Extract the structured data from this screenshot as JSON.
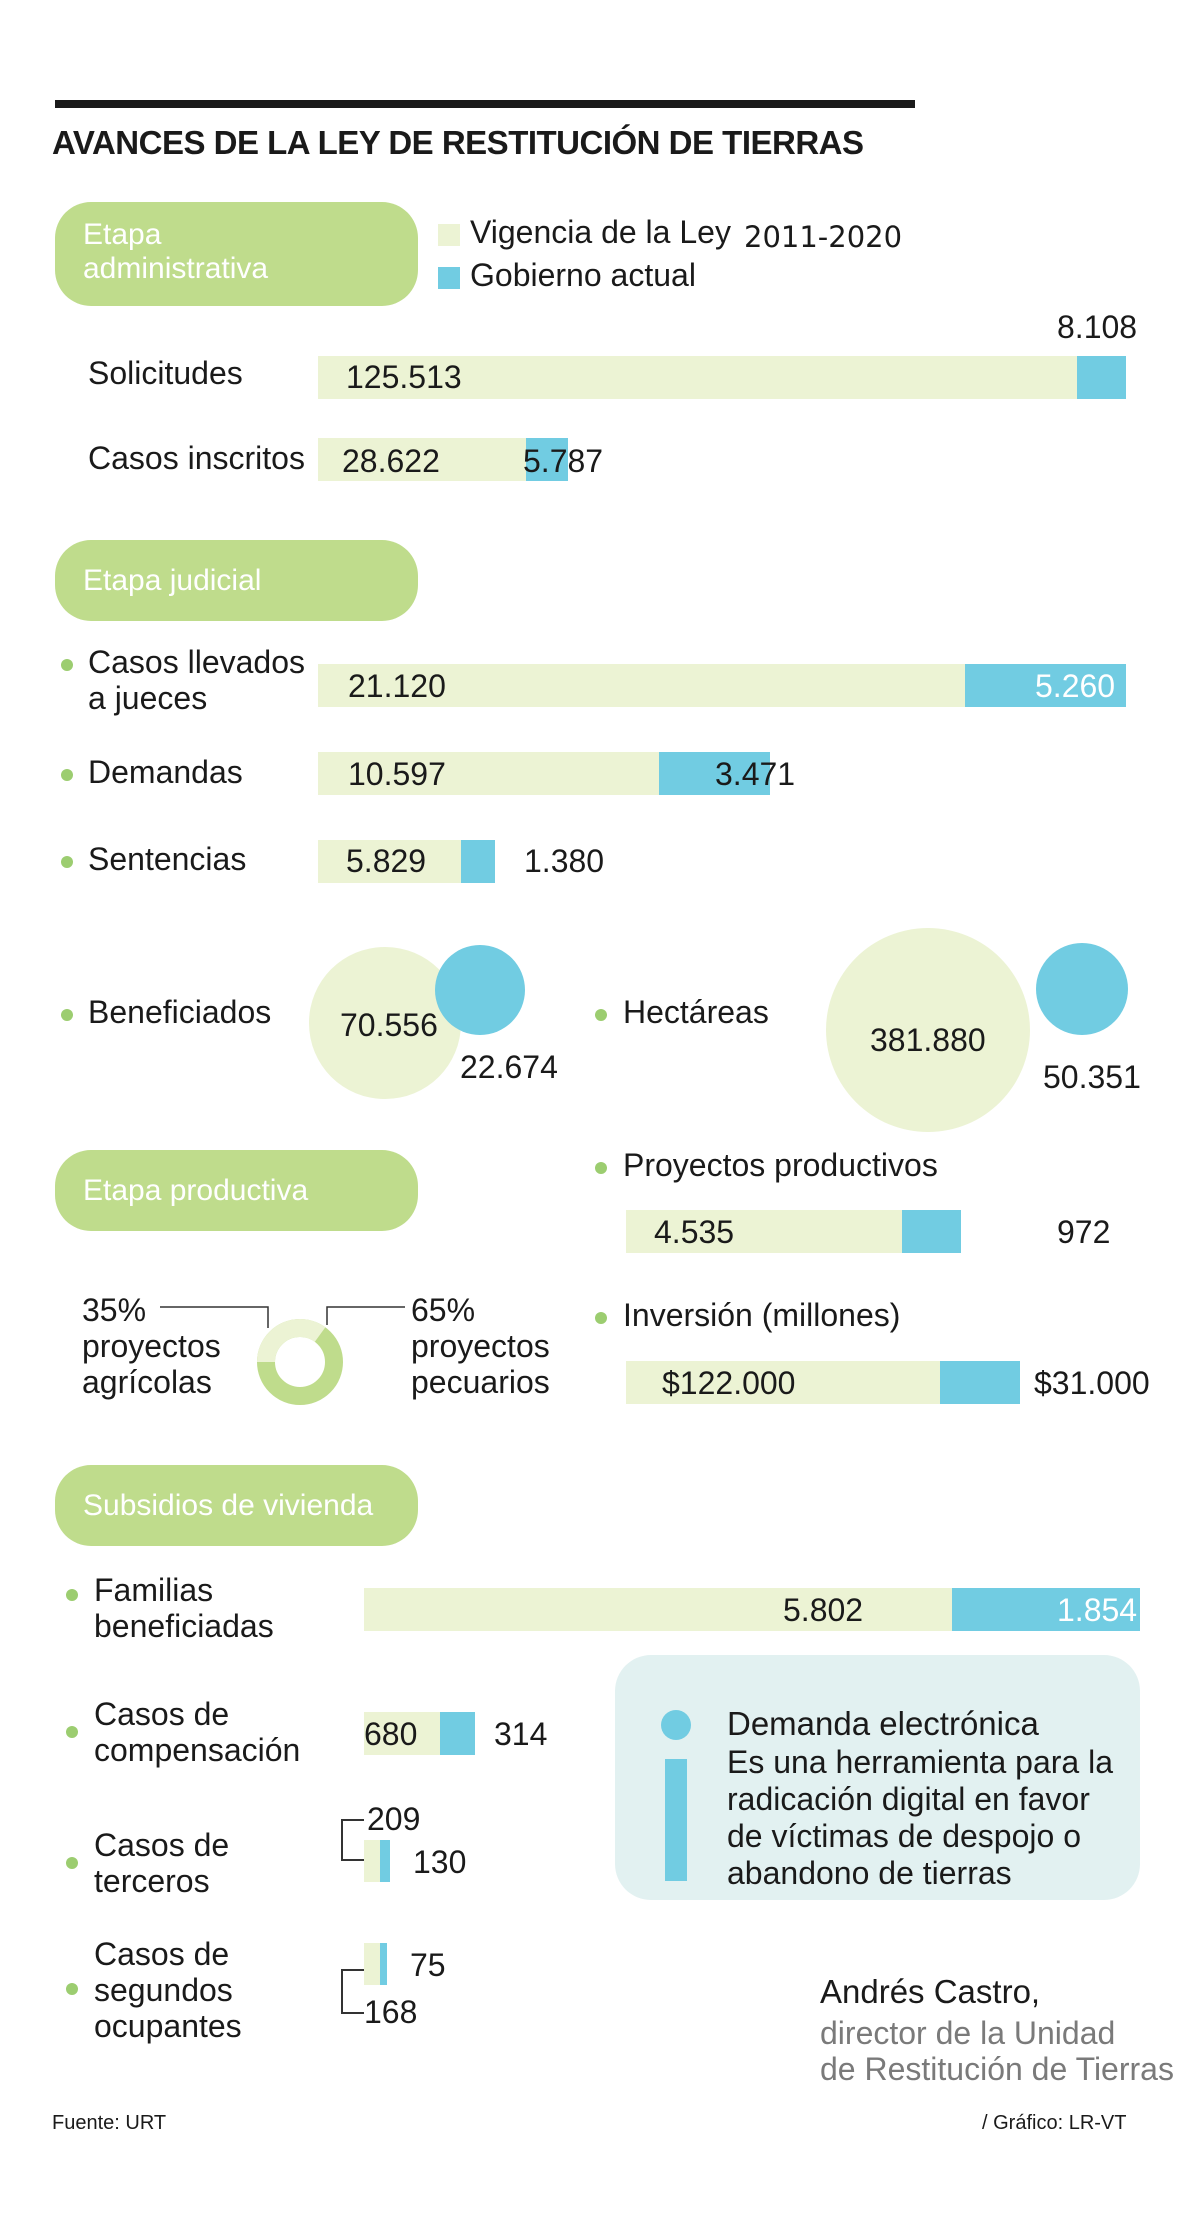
{
  "title": "AVANCES DE LA LEY DE RESTITUCIÓN DE TIERRAS",
  "colors": {
    "vigencia": "#ecf3d4",
    "gobierno": "#71cce2",
    "pill": "#bfdc8c",
    "bullet": "#9ccd70"
  },
  "legend": {
    "vigencia": "Vigencia de la Ley",
    "period": "2011-2020",
    "gobierno": "Gobierno actual"
  },
  "sections": {
    "administrativa": "Etapa administrativa",
    "judicial": "Etapa judicial",
    "productiva": "Etapa productiva",
    "vivienda": "Subsidios de vivienda"
  },
  "chart_data": [
    {
      "type": "bar",
      "stacked": true,
      "section": "Etapa administrativa",
      "categories": [
        "Solicitudes",
        "Casos inscritos"
      ],
      "series": [
        {
          "name": "Vigencia de la Ley 2011-2020",
          "values": [
            125513,
            28622
          ],
          "labels": [
            "125.513",
            "28.622"
          ]
        },
        {
          "name": "Gobierno actual",
          "values": [
            8108,
            5787
          ],
          "labels": [
            "8.108",
            "5.787"
          ]
        }
      ]
    },
    {
      "type": "bar",
      "stacked": true,
      "section": "Etapa judicial",
      "categories": [
        "Casos llevados a jueces",
        "Demandas",
        "Sentencias"
      ],
      "series": [
        {
          "name": "Vigencia de la Ley 2011-2020",
          "values": [
            21120,
            10597,
            5829
          ],
          "labels": [
            "21.120",
            "10.597",
            "5.829"
          ]
        },
        {
          "name": "Gobierno actual",
          "values": [
            5260,
            3471,
            1380
          ],
          "labels": [
            "5.260",
            "3.471",
            "1.380"
          ]
        }
      ]
    },
    {
      "type": "bubble",
      "section": "Etapa judicial",
      "categories": [
        "Beneficiados",
        "Hectáreas"
      ],
      "series": [
        {
          "name": "Vigencia de la Ley 2011-2020",
          "values": [
            70556,
            381880
          ],
          "labels": [
            "70.556",
            "381.880"
          ]
        },
        {
          "name": "Gobierno actual",
          "values": [
            22674,
            50351
          ],
          "labels": [
            "22.674",
            "50.351"
          ]
        }
      ]
    },
    {
      "type": "pie",
      "section": "Etapa productiva",
      "slices": [
        {
          "pct": "35%",
          "value": 35,
          "label": "proyectos agrícolas"
        },
        {
          "pct": "65%",
          "value": 65,
          "label": "proyectos pecuarios"
        }
      ]
    },
    {
      "type": "bar",
      "stacked": true,
      "section": "Etapa productiva",
      "categories": [
        "Proyectos productivos",
        "Inversión (millones)"
      ],
      "series": [
        {
          "name": "Vigencia de la Ley 2011-2020",
          "values": [
            4535,
            122000
          ],
          "labels": [
            "4.535",
            "$122.000"
          ]
        },
        {
          "name": "Gobierno actual",
          "values": [
            972,
            31000
          ],
          "labels": [
            "972",
            "$31.000"
          ]
        }
      ]
    },
    {
      "type": "bar",
      "stacked": true,
      "section": "Subsidios de vivienda",
      "categories": [
        "Familias beneficiadas",
        "Casos de compensación",
        "Casos de terceros",
        "Casos de segundos ocupantes"
      ],
      "series": [
        {
          "name": "Vigencia de la Ley 2011-2020",
          "values": [
            5802,
            680,
            209,
            168
          ],
          "labels": [
            "5.802",
            "680",
            "209",
            "168"
          ]
        },
        {
          "name": "Gobierno actual",
          "values": [
            1854,
            314,
            130,
            75
          ],
          "labels": [
            "1.854",
            "314",
            "130",
            "75"
          ]
        }
      ]
    }
  ],
  "labels": {
    "solicitudes": "Solicitudes",
    "casos_inscritos": "Casos inscritos",
    "jueces_1": "Casos llevados",
    "jueces_2": "a jueces",
    "demandas": "Demandas",
    "sentencias": "Sentencias",
    "beneficiados": "Beneficiados",
    "hectareas": "Hectáreas",
    "proyectos": "Proyectos productivos",
    "inversion": "Inversión (millones)",
    "pie_left_pct": "35%",
    "pie_left_1": "proyectos",
    "pie_left_2": "agrícolas",
    "pie_right_pct": "65%",
    "pie_right_1": "proyectos",
    "pie_right_2": "pecuarios",
    "familias_1": "Familias",
    "familias_2": "beneficiadas",
    "compensacion_1": "Casos de",
    "compensacion_2": "compensación",
    "terceros_1": "Casos de",
    "terceros_2": "terceros",
    "ocupantes_1": "Casos de",
    "ocupantes_2": "segundos",
    "ocupantes_3": "ocupantes"
  },
  "callout": {
    "title": "Demanda electrónica",
    "lines": [
      "Es una herramienta para la",
      "radicación digital en favor",
      "de víctimas de despojo o",
      "abandono de tierras"
    ]
  },
  "quote": {
    "name": "Andrés Castro,",
    "role_1": "director de la Unidad",
    "role_2": "de Restitución de Tierras"
  },
  "footer": {
    "source": "Fuente: URT",
    "credit": "/ Gráfico: LR-VT"
  }
}
